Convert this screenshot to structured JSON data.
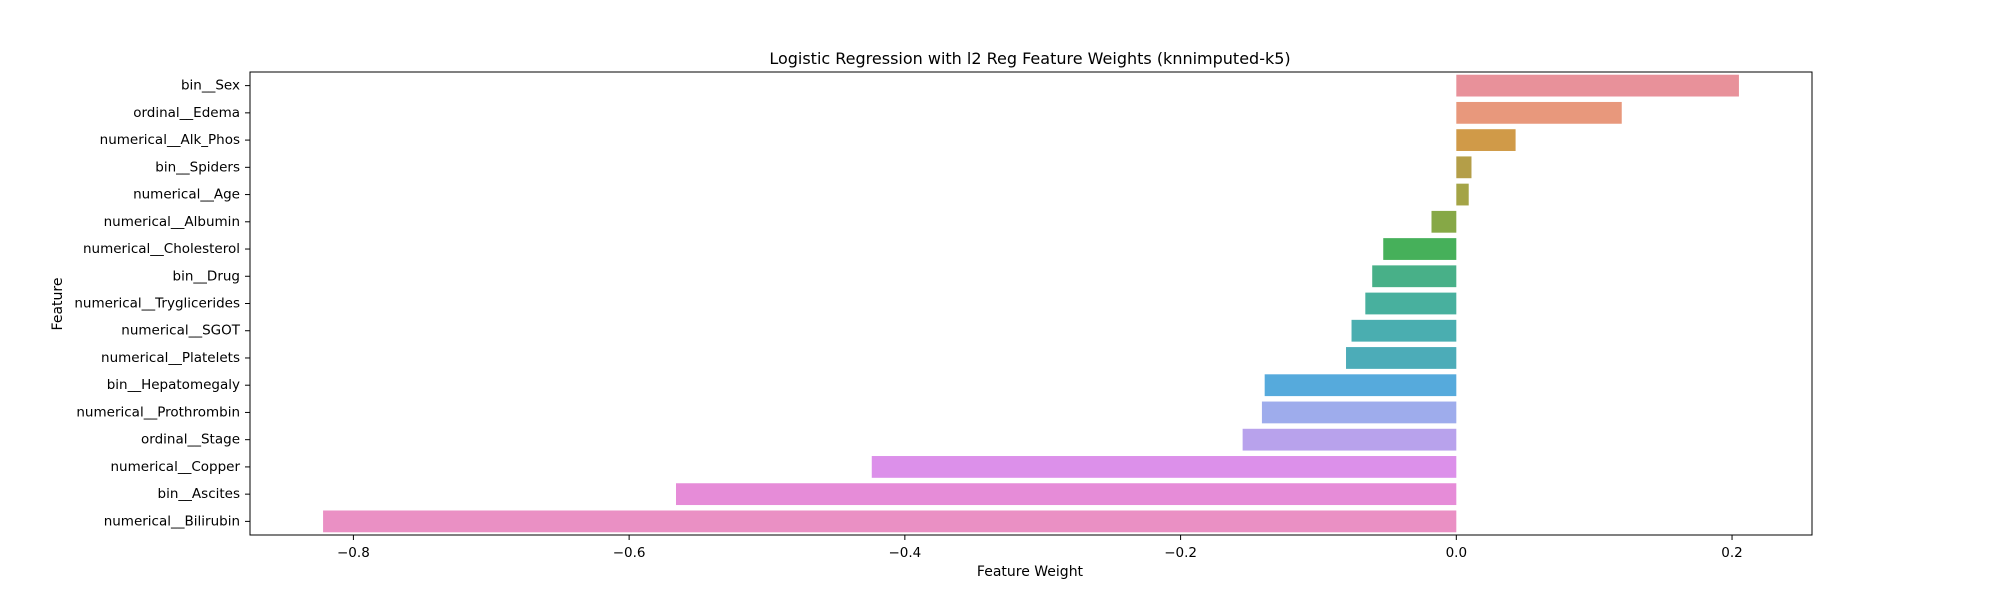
{
  "chart_data": {
    "type": "bar",
    "orientation": "horizontal",
    "title": "Logistic Regression with l2 Reg Feature Weights (knnimputed-k5)",
    "xlabel": "Feature Weight",
    "ylabel": "Feature",
    "xlim": [
      -0.875,
      0.258
    ],
    "xticks": [
      -0.8,
      -0.6,
      -0.4,
      -0.2,
      0.0,
      0.2
    ],
    "xtick_labels": [
      "−0.8",
      "−0.6",
      "−0.4",
      "−0.2",
      "0.0",
      "0.2"
    ],
    "grid": false,
    "categories": [
      "bin__Sex",
      "ordinal__Edema",
      "numerical__Alk_Phos",
      "bin__Spiders",
      "numerical__Age",
      "numerical__Albumin",
      "numerical__Cholesterol",
      "bin__Drug",
      "numerical__Tryglicerides",
      "numerical__SGOT",
      "numerical__Platelets",
      "bin__Hepatomegaly",
      "numerical__Prothrombin",
      "ordinal__Stage",
      "numerical__Copper",
      "bin__Ascites",
      "numerical__Bilirubin"
    ],
    "values": [
      0.205,
      0.12,
      0.043,
      0.011,
      0.009,
      -0.018,
      -0.053,
      -0.061,
      -0.066,
      -0.076,
      -0.08,
      -0.139,
      -0.141,
      -0.155,
      -0.424,
      -0.566,
      -0.822
    ],
    "colors": [
      "#e8919a",
      "#e8987c",
      "#d09a48",
      "#b49e48",
      "#a4a446",
      "#86a846",
      "#46b05a",
      "#48b088",
      "#48b09e",
      "#4aaeb0",
      "#4cacb8",
      "#56aadc",
      "#9eacec",
      "#b8a2ec",
      "#dc90ea",
      "#e68cd8",
      "#ea90c4"
    ]
  }
}
